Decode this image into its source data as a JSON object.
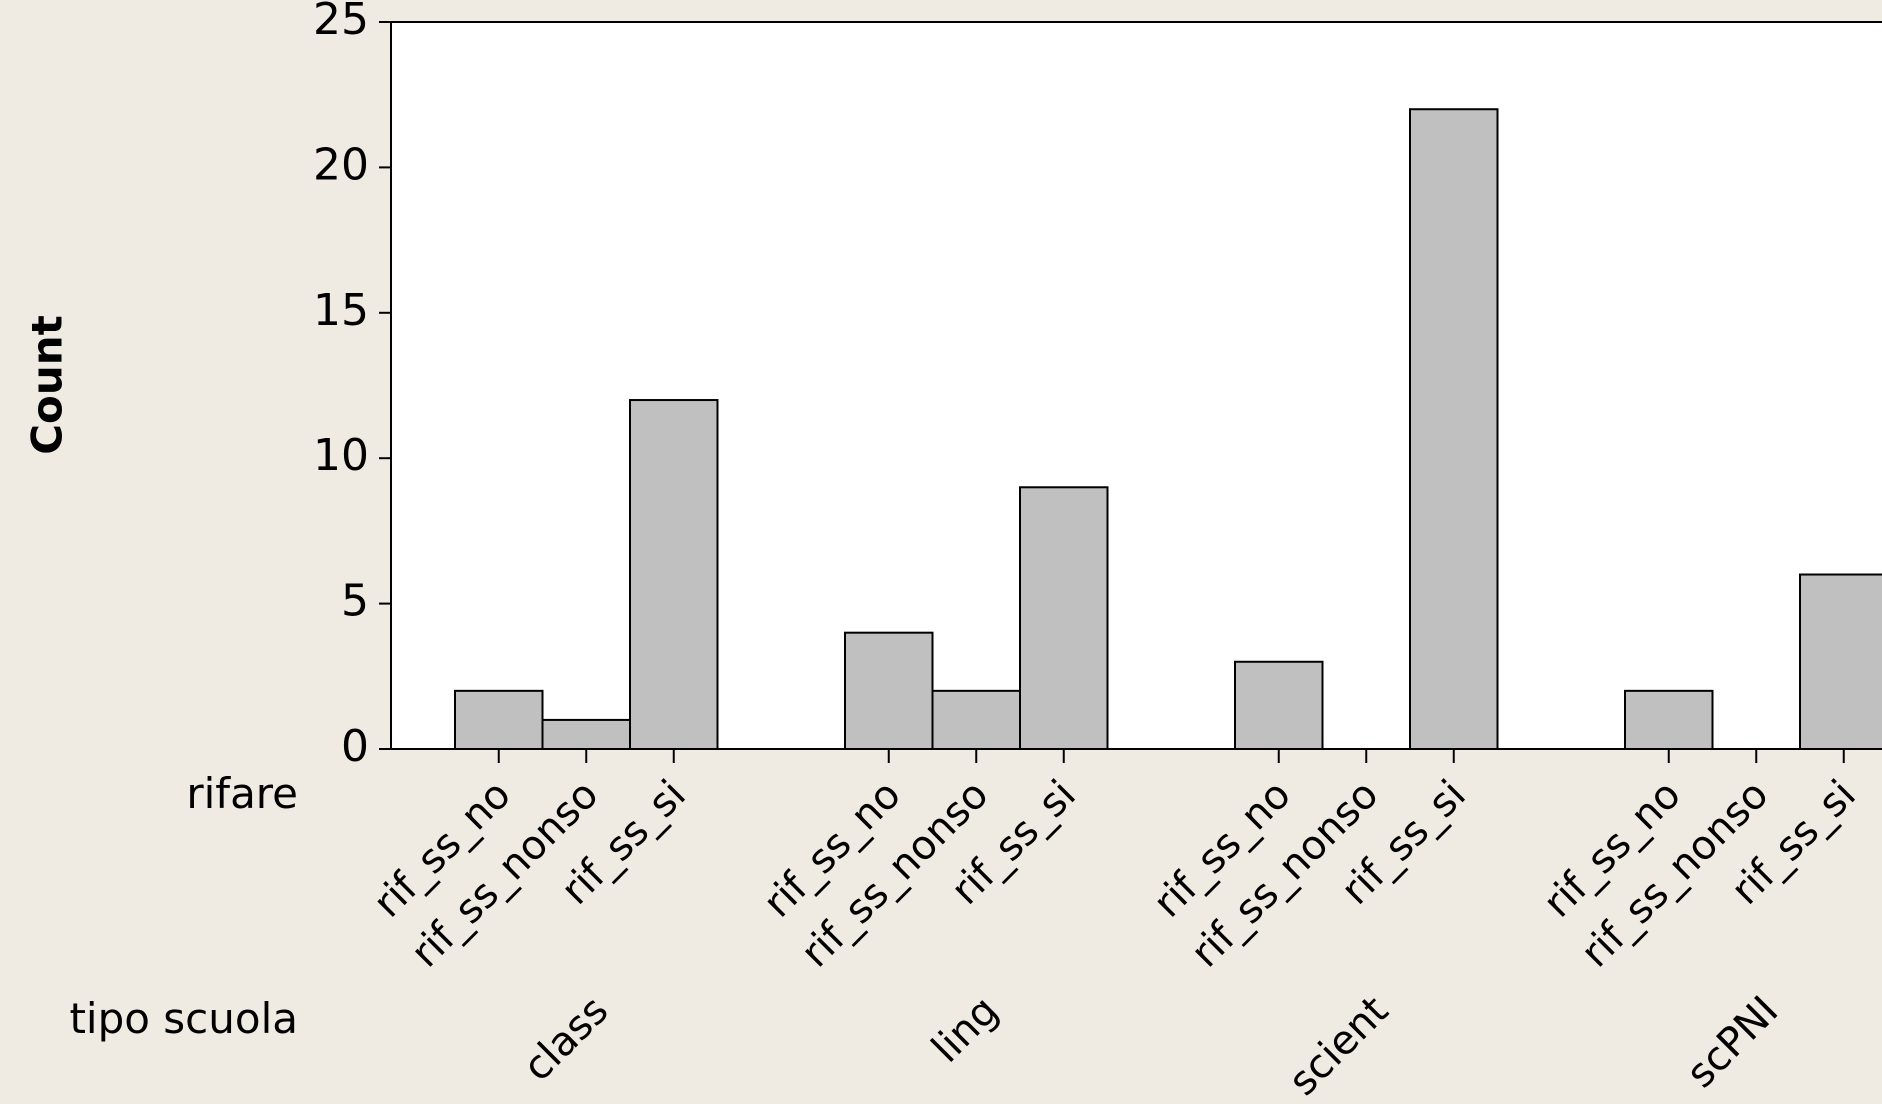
{
  "chart_data": {
    "type": "bar",
    "ylabel": "Count",
    "ylim": [
      0,
      25
    ],
    "yticks": [
      0,
      5,
      10,
      15,
      20,
      25
    ],
    "grid": false,
    "inner_axis": {
      "title": "rifare",
      "categories": [
        "rif_ss_no",
        "rif_ss_nonso",
        "rif_ss_si"
      ]
    },
    "outer_axis": {
      "title": "tipo scuola",
      "groups": [
        {
          "name": "class",
          "values": [
            2,
            1,
            12
          ]
        },
        {
          "name": "ling",
          "values": [
            4,
            2,
            9
          ]
        },
        {
          "name": "scient",
          "values": [
            3,
            0,
            22
          ]
        },
        {
          "name": "scPNI",
          "values": [
            2,
            0,
            6
          ]
        }
      ]
    },
    "colors": {
      "bar_fill": "#c0c0c0",
      "bar_stroke": "#000000",
      "plot_bg": "#ffffff",
      "page_bg": "#efebe2"
    }
  }
}
